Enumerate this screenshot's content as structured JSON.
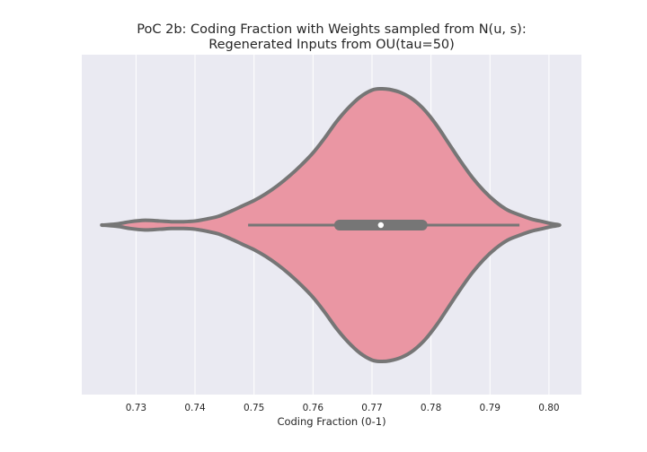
{
  "chart_data": {
    "type": "violin",
    "title_line1": "PoC 2b: Coding Fraction with Weights sampled from N(u, s):",
    "title_line2": "Regenerated Inputs from OU(tau=50)",
    "xlabel": "Coding Fraction (0-1)",
    "ylabel": "",
    "xlim": [
      0.7208,
      0.8055
    ],
    "xticks": [
      0.73,
      0.74,
      0.75,
      0.76,
      0.77,
      0.78,
      0.79,
      0.8
    ],
    "xtick_labels": [
      "0.73",
      "0.74",
      "0.75",
      "0.76",
      "0.77",
      "0.78",
      "0.79",
      "0.80"
    ],
    "grid": true,
    "orientation": "horizontal",
    "colors": {
      "background": "#eaeaf2",
      "grid": "#ffffff",
      "fill": "#ea96a3",
      "outline": "#767676",
      "median_marker": "#ffffff"
    },
    "density_profile": {
      "x": [
        0.7245,
        0.727,
        0.729,
        0.7315,
        0.734,
        0.736,
        0.738,
        0.74,
        0.742,
        0.744,
        0.746,
        0.748,
        0.75,
        0.752,
        0.754,
        0.756,
        0.758,
        0.76,
        0.762,
        0.764,
        0.766,
        0.768,
        0.77,
        0.7715,
        0.773,
        0.775,
        0.777,
        0.779,
        0.781,
        0.783,
        0.785,
        0.787,
        0.789,
        0.791,
        0.793,
        0.795,
        0.797,
        0.799,
        0.8005,
        0.8018
      ],
      "half_width": [
        0.0,
        0.01,
        0.025,
        0.035,
        0.03,
        0.025,
        0.025,
        0.03,
        0.045,
        0.065,
        0.1,
        0.14,
        0.18,
        0.23,
        0.29,
        0.36,
        0.44,
        0.53,
        0.64,
        0.76,
        0.86,
        0.94,
        0.99,
        1.0,
        0.995,
        0.97,
        0.92,
        0.84,
        0.73,
        0.6,
        0.47,
        0.35,
        0.25,
        0.17,
        0.11,
        0.075,
        0.045,
        0.025,
        0.01,
        0.0
      ]
    },
    "whisker_low": 0.749,
    "whisker_high": 0.795,
    "q1": 0.7645,
    "median": 0.7715,
    "q3": 0.7785
  }
}
